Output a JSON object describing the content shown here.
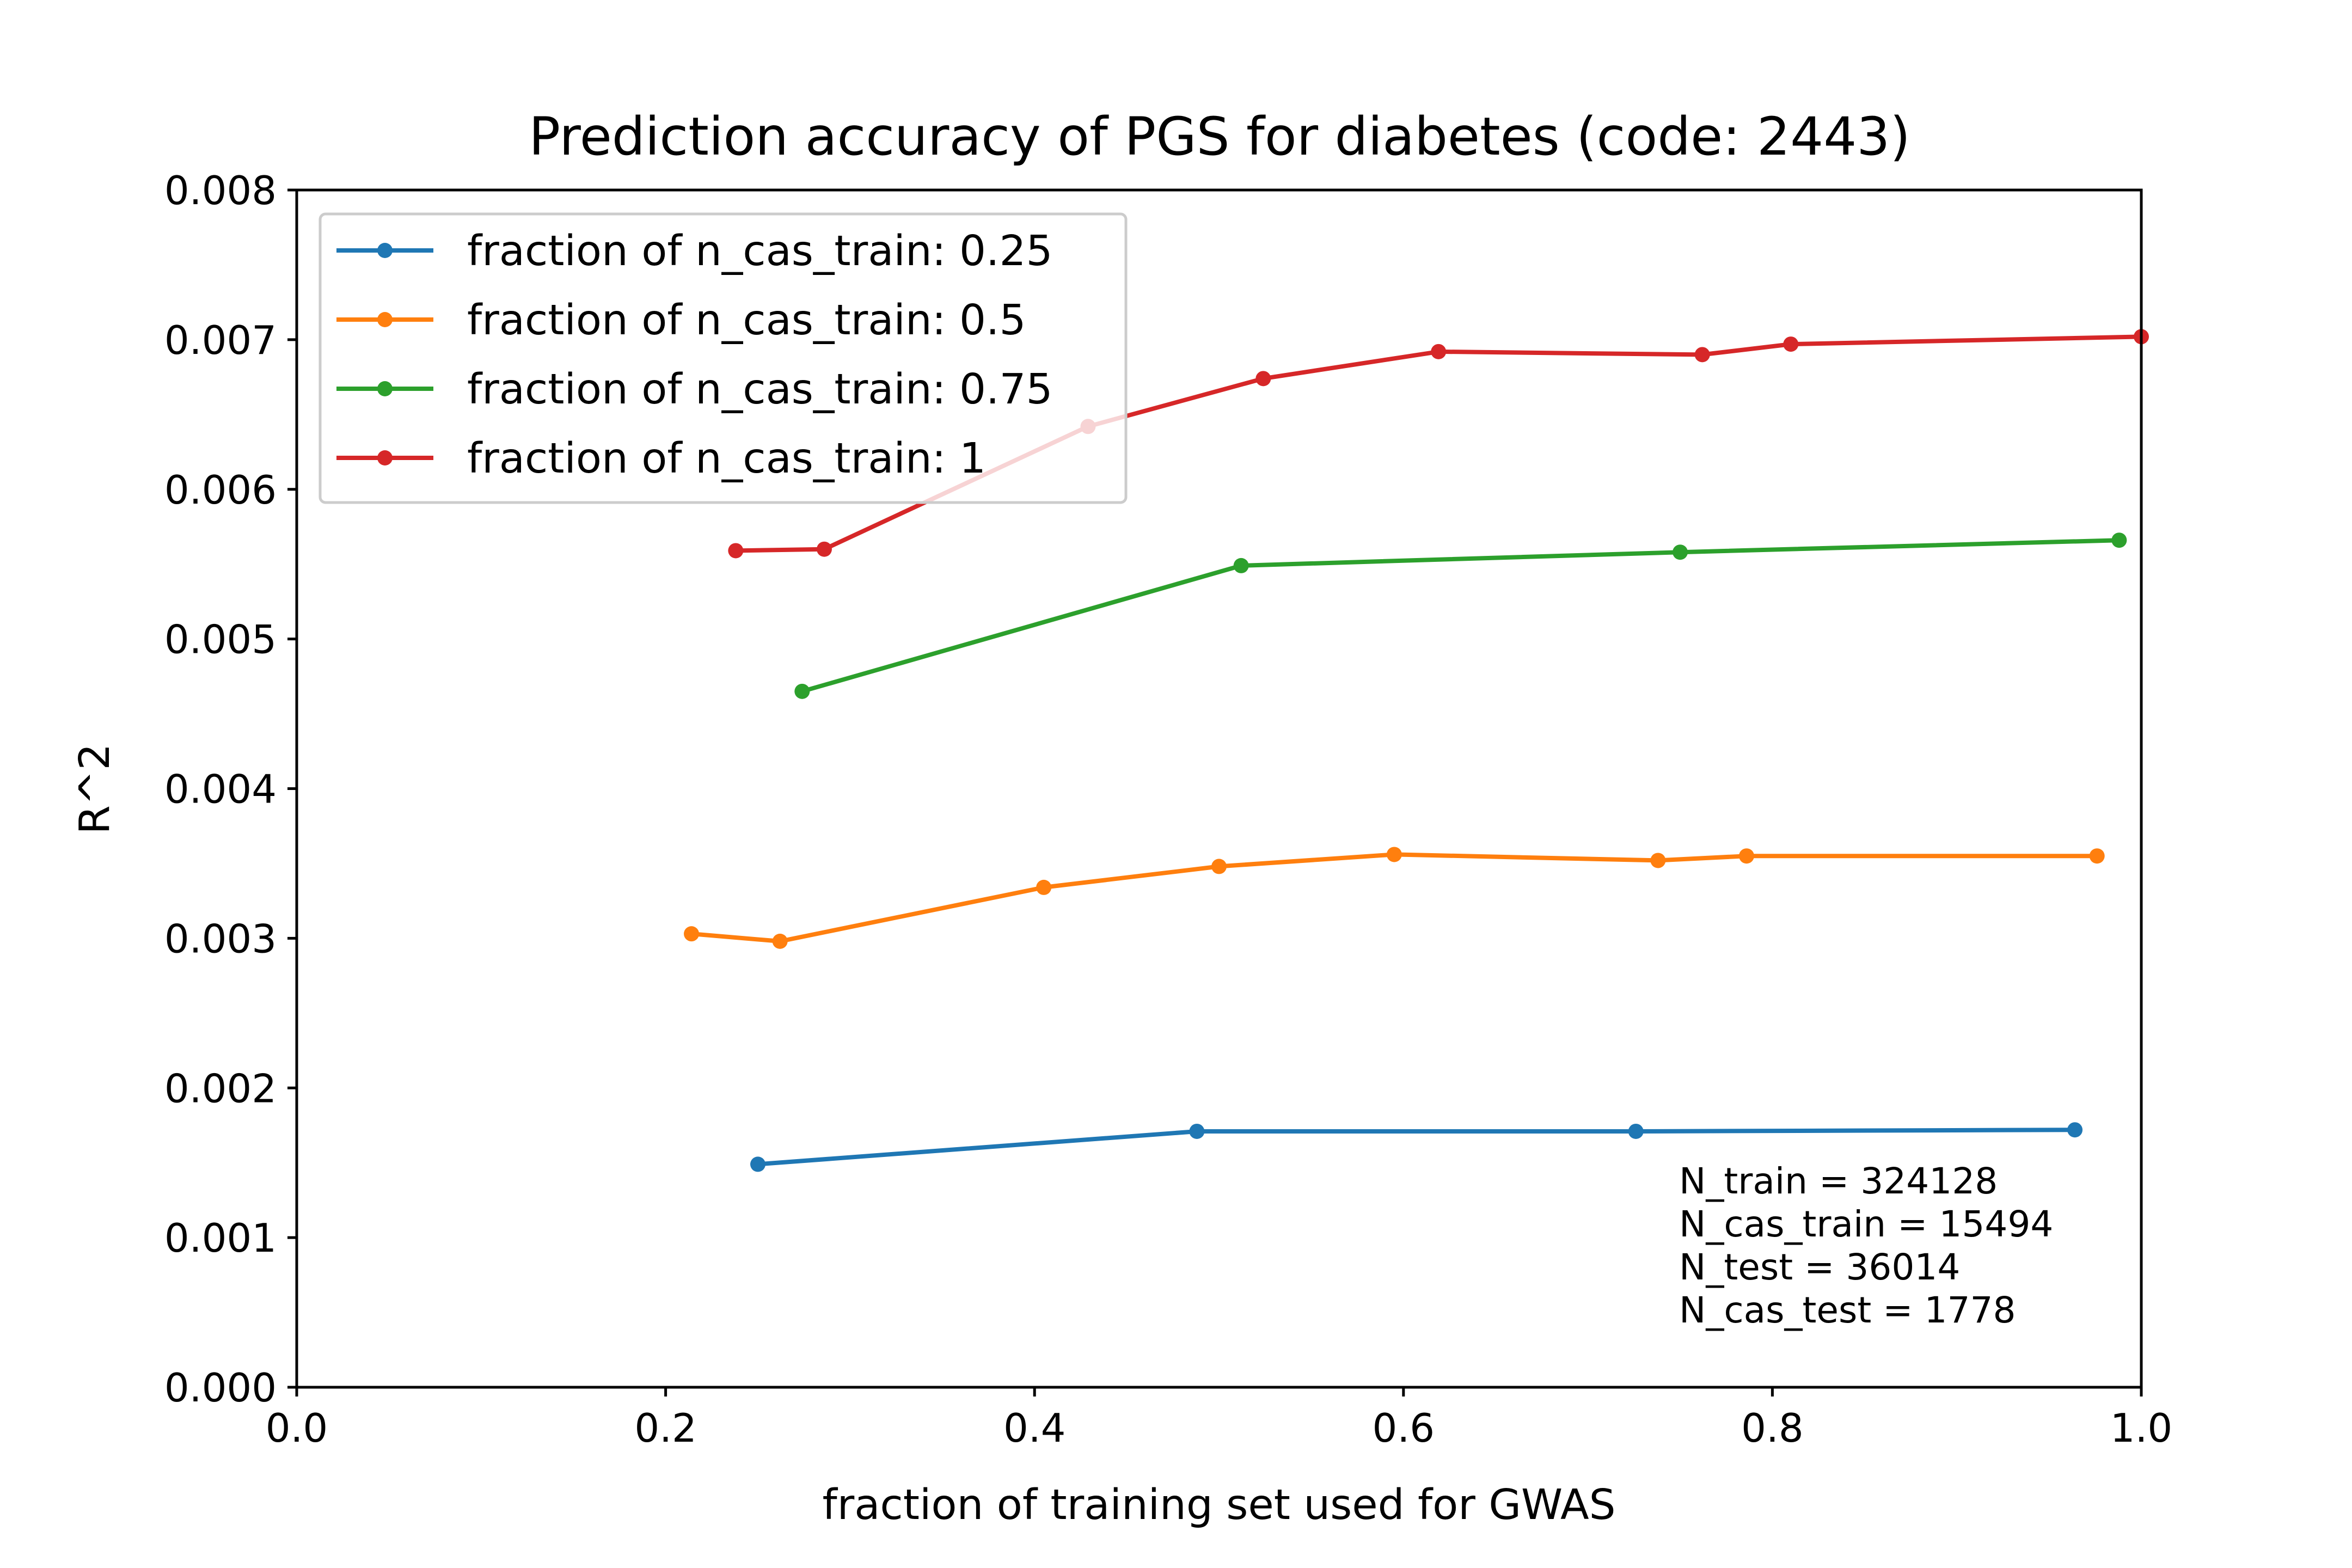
{
  "chart_data": {
    "type": "line",
    "title": "Prediction accuracy of PGS for diabetes (code: 2443)",
    "xlabel": "fraction of training set used for GWAS",
    "ylabel": "R^2",
    "xlim": [
      0.0,
      1.0
    ],
    "ylim": [
      0.0,
      0.008
    ],
    "xticks": [
      "0.0",
      "0.2",
      "0.4",
      "0.6",
      "0.8",
      "1.0"
    ],
    "yticks": [
      "0.000",
      "0.001",
      "0.002",
      "0.003",
      "0.004",
      "0.005",
      "0.006",
      "0.007",
      "0.008"
    ],
    "grid": false,
    "legend_position": "top-left",
    "series": [
      {
        "name": "fraction of n_cas_train: 0.25",
        "color": "#1f77b4",
        "x": [
          0.25,
          0.488,
          0.726,
          0.964
        ],
        "y": [
          0.00149,
          0.00171,
          0.00171,
          0.00172
        ]
      },
      {
        "name": "fraction of n_cas_train: 0.5",
        "color": "#ff7f0e",
        "x": [
          0.214,
          0.262,
          0.405,
          0.5,
          0.595,
          0.738,
          0.786,
          0.976
        ],
        "y": [
          0.00303,
          0.00298,
          0.00334,
          0.00348,
          0.00356,
          0.00352,
          0.00355,
          0.00355
        ]
      },
      {
        "name": "fraction of n_cas_train: 0.75",
        "color": "#2ca02c",
        "x": [
          0.274,
          0.512,
          0.75,
          0.988
        ],
        "y": [
          0.00465,
          0.00549,
          0.00558,
          0.00566
        ]
      },
      {
        "name": "fraction of n_cas_train: 1",
        "color": "#d62728",
        "x": [
          0.238,
          0.286,
          0.429,
          0.524,
          0.619,
          0.762,
          0.81,
          1.0
        ],
        "y": [
          0.00559,
          0.0056,
          0.00642,
          0.00674,
          0.00692,
          0.0069,
          0.00697,
          0.00702
        ]
      }
    ],
    "annotations": [
      "N_train = 324128",
      "N_cas_train = 15494",
      "N_test = 36014",
      "N_cas_test = 1778"
    ]
  }
}
